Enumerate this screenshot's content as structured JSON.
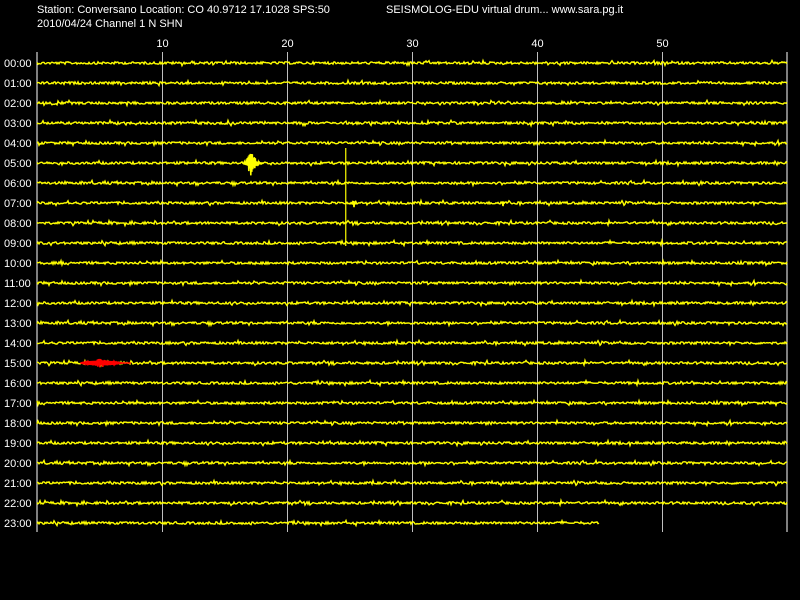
{
  "header": {
    "station_line": "Station: Conversano Location: CO 40.9712 17.1028 SPS:50",
    "date_line": "2010/04/24  Channel 1 N SHN",
    "title_line": "SEISMOLOG-EDU virtual drum... www.sara.pg.it"
  },
  "drum": {
    "minute_ticks": [
      "10",
      "20",
      "30",
      "40",
      "50"
    ],
    "minute_tick_values": [
      10,
      20,
      30,
      40,
      50
    ],
    "minutes_per_row": 60,
    "hour_labels": [
      "00:00",
      "01:00",
      "02:00",
      "03:00",
      "04:00",
      "05:00",
      "06:00",
      "07:00",
      "08:00",
      "09:00",
      "10:00",
      "11:00",
      "12:00",
      "13:00",
      "14:00",
      "15:00",
      "16:00",
      "17:00",
      "18:00",
      "19:00",
      "20:00",
      "21:00",
      "22:00",
      "23:00"
    ],
    "last_row_end_minute": 45,
    "colors": {
      "background": "#000000",
      "trace": "#ffff00",
      "highlight_trace": "#ff0000",
      "grid": "#ffffff",
      "text": "#ffffff"
    },
    "events": [
      {
        "row": 5,
        "minute": 16.5,
        "duration": 1.6,
        "amplitude": 15,
        "color": "trace"
      },
      {
        "row": 4,
        "minute": 24.7,
        "duration": 0.15,
        "amplitude": 0,
        "spike_to_row": 9,
        "color": "trace"
      },
      {
        "row": 7,
        "minute": 25.2,
        "duration": 0.4,
        "amplitude": 5,
        "color": "trace"
      },
      {
        "row": 7,
        "minute": 37.2,
        "duration": 0.2,
        "amplitude": 5,
        "color": "trace"
      },
      {
        "row": 15,
        "minute": 3.5,
        "duration": 4.0,
        "amplitude": 5,
        "color": "highlight_trace"
      }
    ]
  }
}
